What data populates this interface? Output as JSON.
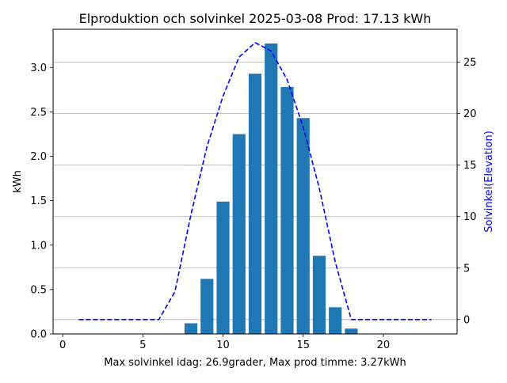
{
  "chart_data": {
    "type": "bar",
    "title": "Elproduktion och solvinkel 2025-03-08 Prod: 17.13 kWh",
    "xlabel": "Max solvinkel idag: 26.9grader, Max prod timme: 3.27kWh",
    "ylabel": "kWh",
    "ylabel_right": "Solvinkel(Elevation)",
    "xlim": [
      -0.6,
      24.6
    ],
    "ylim": [
      0,
      3.43
    ],
    "ylim_right": [
      -1.4,
      28.2
    ],
    "xticks": [
      0,
      5,
      10,
      15,
      20
    ],
    "yticks": [
      0.0,
      0.5,
      1.0,
      1.5,
      2.0,
      2.5,
      3.0
    ],
    "yticks_right": [
      0,
      5,
      10,
      15,
      20,
      25
    ],
    "grid": "horizontal lines at right-axis ticks",
    "series": [
      {
        "type": "bar",
        "axis": "left",
        "color": "#1f77b4",
        "x": [
          8,
          9,
          10,
          11,
          12,
          13,
          14,
          15,
          16,
          17,
          18
        ],
        "values": [
          0.12,
          0.62,
          1.49,
          2.25,
          2.93,
          3.27,
          2.78,
          2.43,
          0.88,
          0.3,
          0.06
        ]
      },
      {
        "type": "line",
        "axis": "right",
        "color": "#0000ff",
        "linestyle": "dashed",
        "x": [
          1,
          2,
          3,
          4,
          5,
          6,
          7,
          8,
          9,
          10,
          11,
          12,
          13,
          14,
          15,
          16,
          17,
          18,
          19,
          20,
          21,
          22,
          23
        ],
        "values": [
          0,
          0,
          0,
          0,
          0,
          0,
          2.7,
          10.2,
          16.8,
          21.7,
          25.5,
          26.9,
          26.1,
          23.3,
          18.7,
          12.8,
          5.6,
          0,
          0,
          0,
          0,
          0,
          0
        ]
      }
    ]
  }
}
